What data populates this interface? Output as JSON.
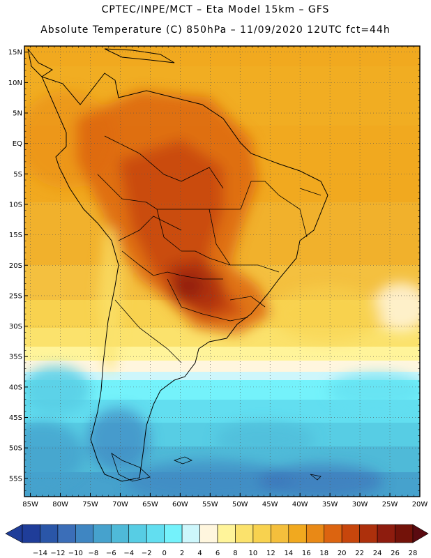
{
  "header": {
    "line1": "CPTEC/INPE/MCT –  Eta Model 15km – GFS",
    "line2": "Absolute Temperature (C) 850hPa – 11/09/2020 12UTC fct=44h"
  },
  "map": {
    "lat_labels": [
      "15N",
      "10N",
      "5N",
      "EQ",
      "5S",
      "10S",
      "15S",
      "20S",
      "25S",
      "30S",
      "35S",
      "40S",
      "45S",
      "50S",
      "55S"
    ],
    "lon_labels": [
      "85W",
      "80W",
      "75W",
      "70W",
      "65W",
      "60W",
      "55W",
      "50W",
      "45W",
      "40W",
      "35W",
      "30W",
      "25W",
      "20W"
    ],
    "lat_range": [
      16,
      -58
    ],
    "lon_range": [
      -86,
      -20
    ]
  },
  "colorbar": {
    "labels": [
      "-14",
      "-12",
      "-10",
      "-8",
      "-6",
      "-4",
      "-2",
      "0",
      "2",
      "4",
      "6",
      "8",
      "10",
      "12",
      "14",
      "16",
      "18",
      "20",
      "22",
      "24",
      "26",
      "28"
    ],
    "colors": [
      "#1f3d99",
      "#2a56a8",
      "#3b6eb8",
      "#3f86c2",
      "#46a2cd",
      "#4fbad8",
      "#57cde4",
      "#62def0",
      "#74f2fb",
      "#cdf6fb",
      "#fff6de",
      "#fff49a",
      "#fbe26c",
      "#f8d24f",
      "#f4bf3c",
      "#f1a91f",
      "#e98916",
      "#dc6410",
      "#c7460c",
      "#ad300c",
      "#8e1c0e",
      "#731209"
    ]
  }
}
